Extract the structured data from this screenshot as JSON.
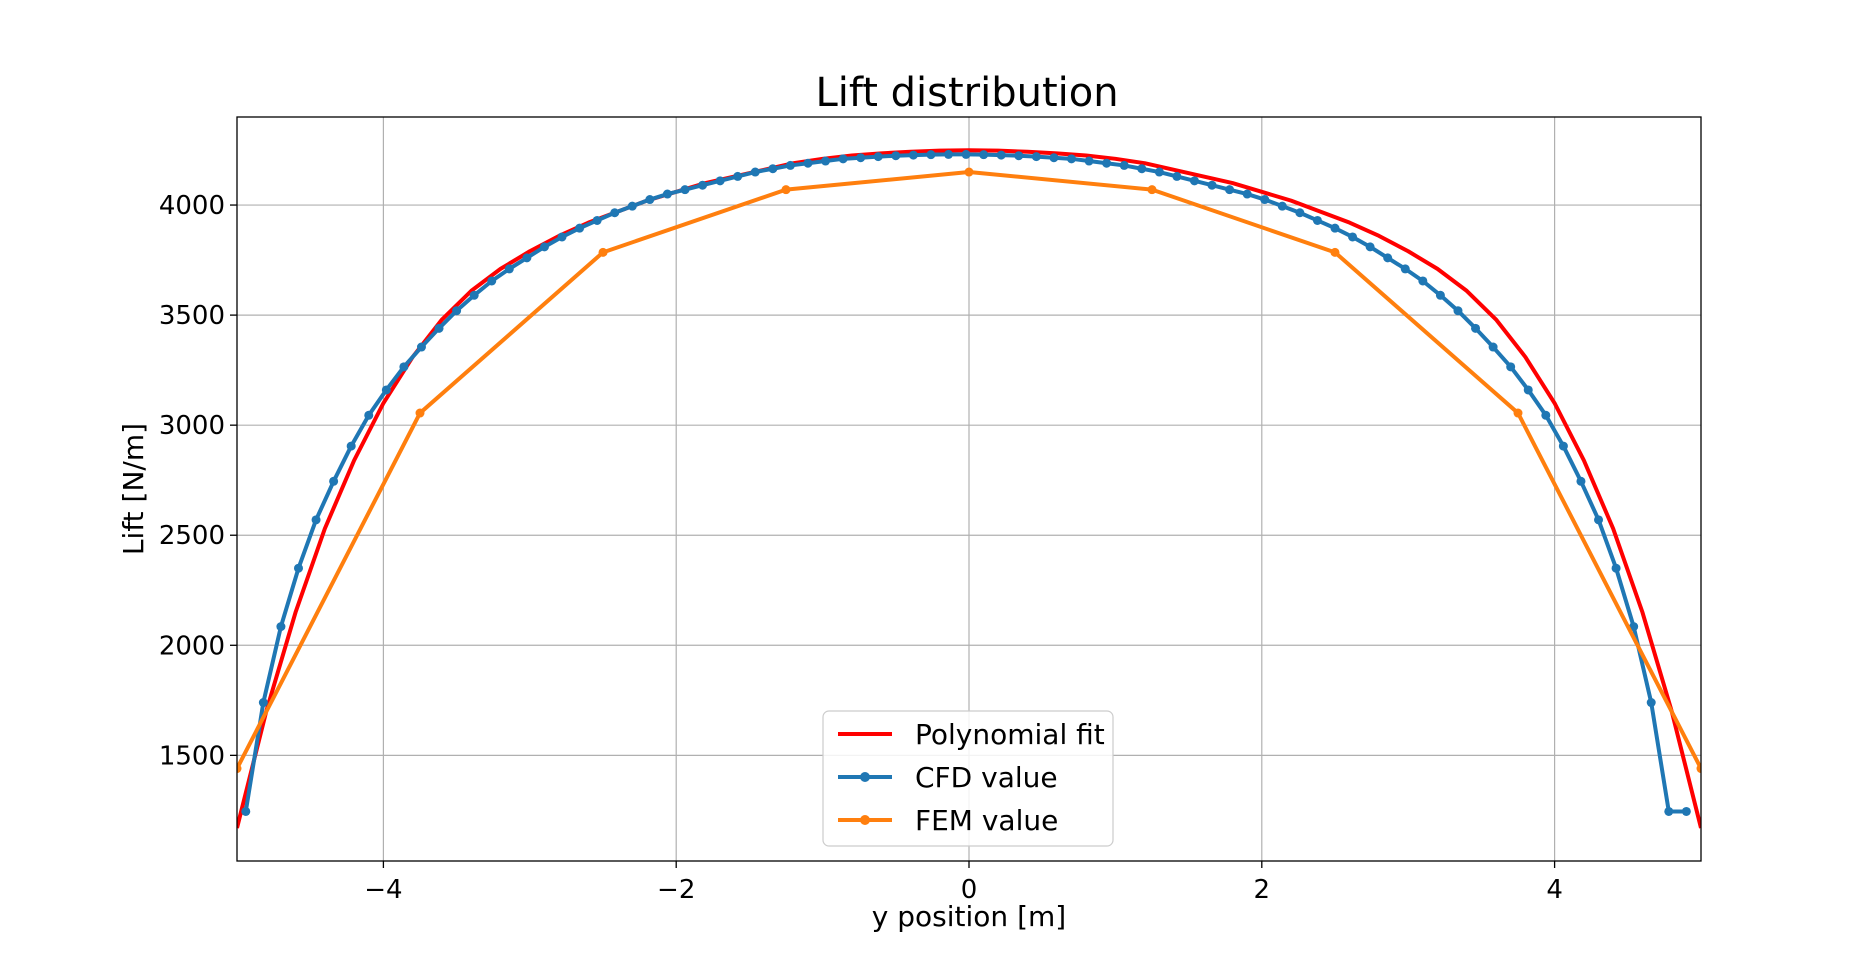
{
  "chart_data": {
    "type": "line",
    "title": "Lift distribution",
    "xlabel": "y position [m]",
    "ylabel": "Lift [N/m]",
    "xlim": [
      -5,
      5
    ],
    "ylim": [
      1020,
      4400
    ],
    "xticks": [
      -4,
      -2,
      0,
      2,
      4
    ],
    "xtick_labels": [
      "−4",
      "−2",
      "0",
      "2",
      "4"
    ],
    "yticks": [
      1500,
      2000,
      2500,
      3000,
      3500,
      4000
    ],
    "ytick_labels": [
      "1500",
      "2000",
      "2500",
      "3000",
      "3500",
      "4000"
    ],
    "grid": true,
    "legend_position": "lower-center",
    "series": [
      {
        "name": "Polynomial fit",
        "color": "#ff0000",
        "marker": "none",
        "x": [
          -5.0,
          -4.8,
          -4.6,
          -4.4,
          -4.2,
          -4.0,
          -3.8,
          -3.6,
          -3.4,
          -3.2,
          -3.0,
          -2.8,
          -2.6,
          -2.4,
          -2.2,
          -2.0,
          -1.8,
          -1.6,
          -1.4,
          -1.2,
          -1.0,
          -0.8,
          -0.6,
          -0.4,
          -0.2,
          0.0,
          0.2,
          0.4,
          0.6,
          0.8,
          1.0,
          1.2,
          1.4,
          1.6,
          1.8,
          2.0,
          2.2,
          2.4,
          2.6,
          2.8,
          3.0,
          3.2,
          3.4,
          3.6,
          3.8,
          4.0,
          4.2,
          4.4,
          4.6,
          4.8,
          5.0
        ],
        "y": [
          1170,
          1700,
          2150,
          2530,
          2840,
          3100,
          3310,
          3480,
          3610,
          3710,
          3790,
          3860,
          3920,
          3970,
          4020,
          4060,
          4100,
          4130,
          4160,
          4190,
          4210,
          4225,
          4235,
          4242,
          4247,
          4249,
          4247,
          4242,
          4235,
          4225,
          4210,
          4190,
          4160,
          4130,
          4100,
          4060,
          4020,
          3970,
          3920,
          3860,
          3790,
          3710,
          3610,
          3480,
          3310,
          3100,
          2840,
          2530,
          2150,
          1700,
          1170
        ]
      },
      {
        "name": "CFD value",
        "color": "#1f77b4",
        "marker": "circle",
        "x": [
          -4.94,
          -4.82,
          -4.7,
          -4.58,
          -4.46,
          -4.34,
          -4.22,
          -4.1,
          -3.98,
          -3.86,
          -3.74,
          -3.62,
          -3.5,
          -3.38,
          -3.26,
          -3.14,
          -3.02,
          -2.9,
          -2.78,
          -2.66,
          -2.54,
          -2.42,
          -2.3,
          -2.18,
          -2.06,
          -1.94,
          -1.82,
          -1.7,
          -1.58,
          -1.46,
          -1.34,
          -1.22,
          -1.1,
          -0.98,
          -0.86,
          -0.74,
          -0.62,
          -0.5,
          -0.38,
          -0.26,
          -0.14,
          -0.02,
          0.1,
          0.22,
          0.34,
          0.46,
          0.58,
          0.7,
          0.82,
          0.94,
          1.06,
          1.18,
          1.3,
          1.42,
          1.54,
          1.66,
          1.78,
          1.9,
          2.02,
          2.14,
          2.26,
          2.38,
          2.5,
          2.62,
          2.74,
          2.86,
          2.98,
          3.1,
          3.22,
          3.34,
          3.46,
          3.58,
          3.7,
          3.82,
          3.94,
          4.06,
          4.18,
          4.3,
          4.42,
          4.54,
          4.66,
          4.78,
          4.9
        ],
        "y": [
          1245,
          1740,
          2085,
          2350,
          2570,
          2745,
          2905,
          3045,
          3160,
          3265,
          3355,
          3440,
          3520,
          3590,
          3655,
          3710,
          3760,
          3810,
          3855,
          3895,
          3930,
          3965,
          3995,
          4025,
          4050,
          4070,
          4090,
          4110,
          4130,
          4150,
          4165,
          4180,
          4190,
          4200,
          4210,
          4215,
          4220,
          4224,
          4227,
          4229,
          4230,
          4230,
          4229,
          4227,
          4224,
          4220,
          4215,
          4210,
          4200,
          4190,
          4180,
          4165,
          4150,
          4130,
          4110,
          4090,
          4070,
          4050,
          4025,
          3995,
          3965,
          3930,
          3895,
          3855,
          3810,
          3760,
          3710,
          3655,
          3590,
          3520,
          3440,
          3355,
          3265,
          3160,
          3045,
          2905,
          2745,
          2570,
          2350,
          2085,
          1740,
          1245,
          1245
        ]
      },
      {
        "name": "FEM value",
        "color": "#ff7f0e",
        "marker": "circle",
        "x": [
          -5.0,
          -3.75,
          -2.5,
          -1.25,
          0.0,
          1.25,
          2.5,
          3.75,
          5.0
        ],
        "y": [
          1440,
          3055,
          3785,
          4070,
          4150,
          4070,
          3785,
          3055,
          1440
        ]
      }
    ]
  }
}
